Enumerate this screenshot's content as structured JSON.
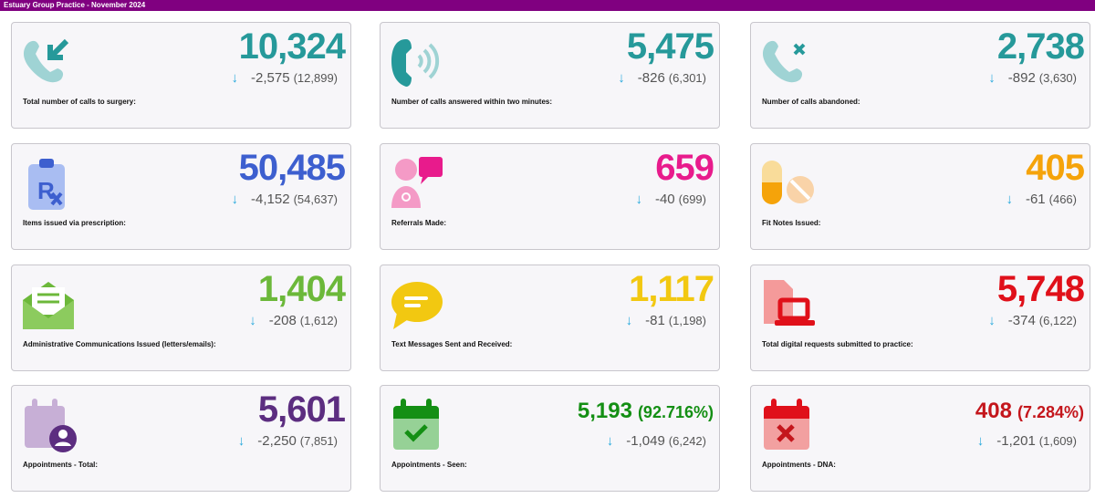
{
  "header": {
    "title": "Estuary Group Practice - November 2024"
  },
  "cards": [
    {
      "label": "Total number of calls to surgery:",
      "value": "10,324",
      "delta": "-2,575",
      "previous": "(12,899)",
      "color": "#26999a",
      "icon": "phone-incoming-icon"
    },
    {
      "label": "Number of calls answered within two minutes:",
      "value": "5,475",
      "delta": "-826",
      "previous": "(6,301)",
      "color": "#26999a",
      "icon": "phone-ringing-icon"
    },
    {
      "label": "Number of calls abandoned:",
      "value": "2,738",
      "delta": "-892",
      "previous": "(3,630)",
      "color": "#26999a",
      "icon": "phone-missed-icon"
    },
    {
      "label": "Items issued via prescription:",
      "value": "50,485",
      "delta": "-4,152",
      "previous": "(54,637)",
      "color": "#3d5fcf",
      "icon": "prescription-icon"
    },
    {
      "label": "Referrals Made:",
      "value": "659",
      "delta": "-40",
      "previous": "(699)",
      "color": "#e81b8c",
      "icon": "doctor-chat-icon"
    },
    {
      "label": "Fit Notes Issued:",
      "value": "405",
      "delta": "-61",
      "previous": "(466)",
      "color": "#f5a30a",
      "icon": "pills-icon"
    },
    {
      "label": "Administrative Communications Issued (letters/emails):",
      "value": "1,404",
      "delta": "-208",
      "previous": "(1,612)",
      "color": "#6cb83a",
      "icon": "envelope-open-icon"
    },
    {
      "label": "Text Messages Sent and Received:",
      "value": "1,117",
      "delta": "-81",
      "previous": "(1,198)",
      "color": "#f2c811",
      "icon": "chat-bubble-icon"
    },
    {
      "label": "Total digital requests submitted to practice:",
      "value": "5,748",
      "delta": "-374",
      "previous": "(6,122)",
      "color": "#e0101a",
      "icon": "document-laptop-icon"
    },
    {
      "label": "Appointments - Total:",
      "value": "5,601",
      "delta": "-2,250",
      "previous": "(7,851)",
      "color": "#5c2d80",
      "icon": "calendar-user-icon"
    },
    {
      "label": "Appointments - Seen:",
      "value": "5,193",
      "percent": "(92.716%)",
      "delta": "-1,049",
      "previous": "(6,242)",
      "color": "#148f14",
      "icon": "calendar-check-icon"
    },
    {
      "label": "Appointments - DNA:",
      "value": "408",
      "percent": "(7.284%)",
      "delta": "-1,201",
      "previous": "(1,609)",
      "color": "#c4161c",
      "icon": "calendar-cross-icon"
    }
  ]
}
